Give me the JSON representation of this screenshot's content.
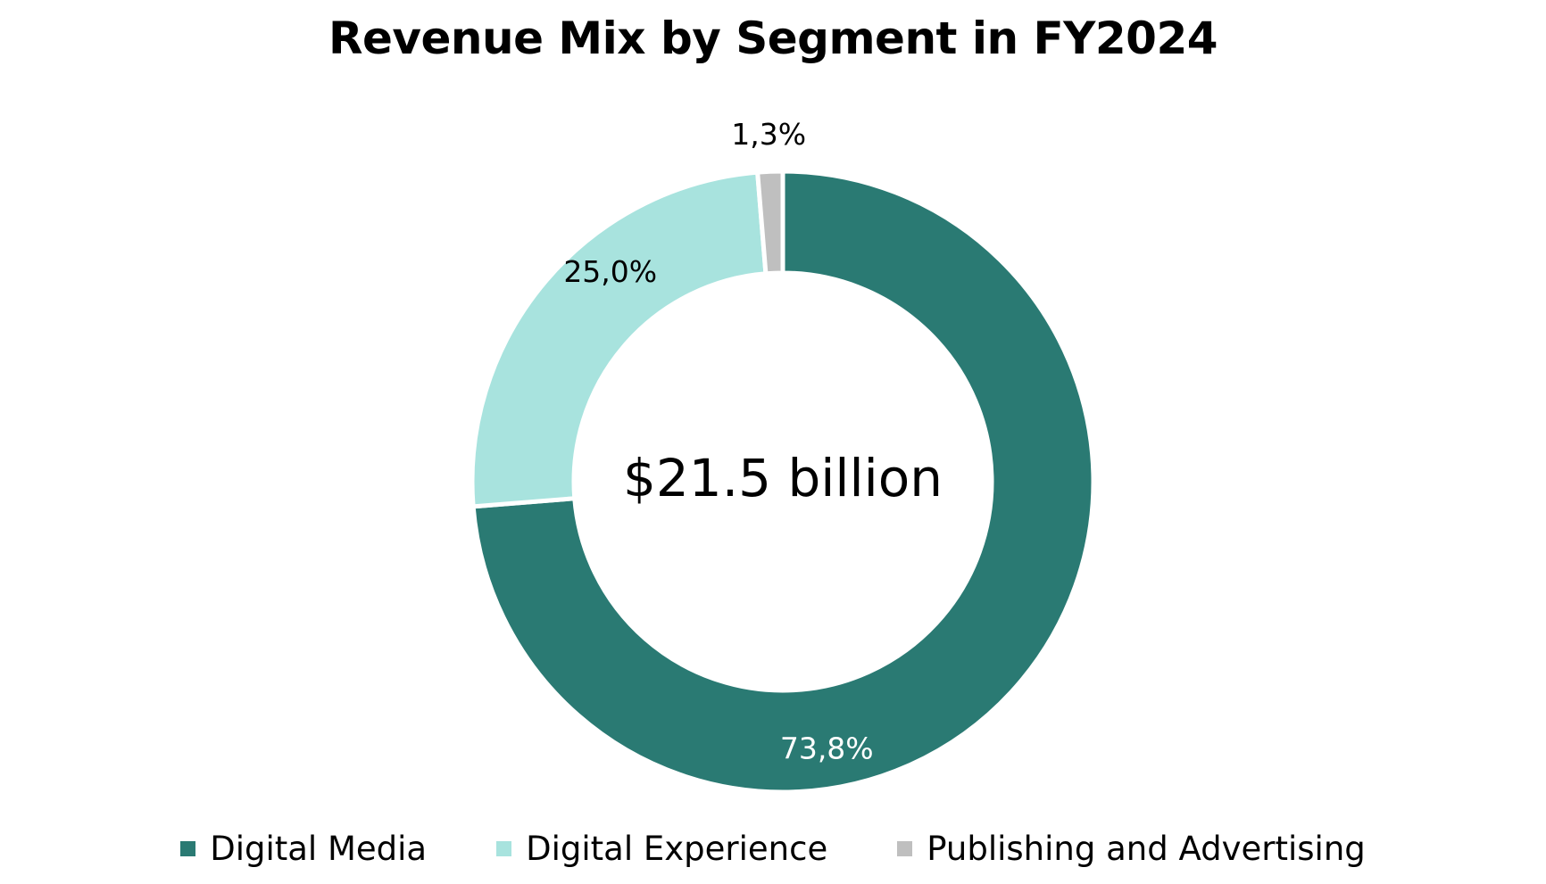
{
  "chart_data": {
    "type": "pie",
    "title": "Revenue Mix by Segment in FY2024",
    "center_label": "$21.5 billion",
    "legend_position": "bottom",
    "slices": [
      {
        "name": "Digital Media",
        "value": 73.8,
        "label": "73,8%",
        "color": "#2a7a73",
        "label_color": "#ffffff"
      },
      {
        "name": "Digital Experience",
        "value": 25.0,
        "label": "25,0%",
        "color": "#a8e3de",
        "label_color": "#000000"
      },
      {
        "name": "Publishing and Advertising",
        "value": 1.3,
        "label": "1,3%",
        "color": "#bfbfbf",
        "label_color": "#000000"
      }
    ]
  }
}
